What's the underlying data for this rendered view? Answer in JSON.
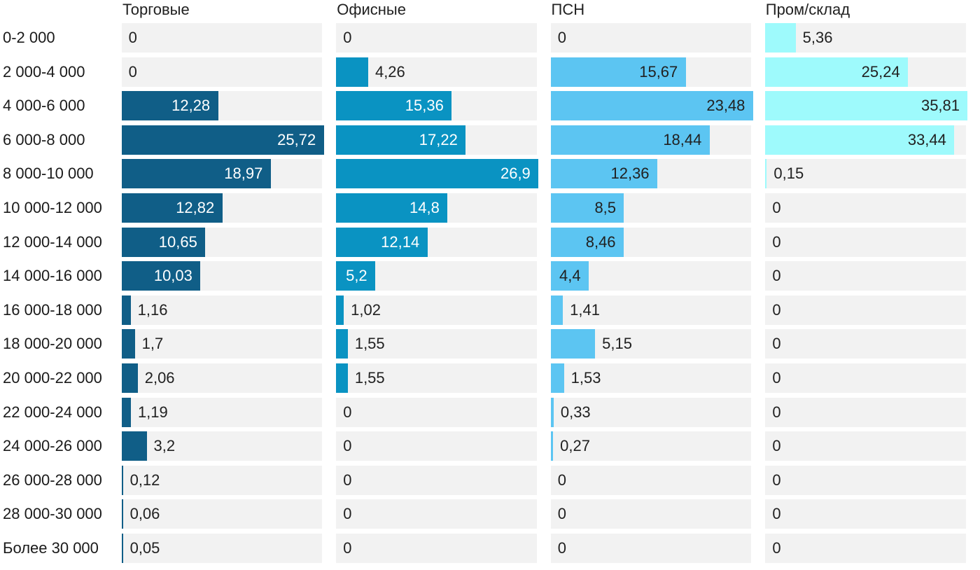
{
  "chart_data": {
    "type": "bar",
    "orientation": "horizontal",
    "title": "",
    "xlabel": "",
    "ylabel": "",
    "grid": false,
    "legend_position": "top-column-headers",
    "per_column_max_scaling": true,
    "value_format": "decimal-comma",
    "track_color": "#f2f2f2",
    "outside_label_color": "#212121",
    "categories": [
      "0-2 000",
      "2 000-4 000",
      "4 000-6 000",
      "6 000-8 000",
      "8 000-10 000",
      "10 000-12 000",
      "12 000-14 000",
      "14 000-16 000",
      "16 000-18 000",
      "18 000-20 000",
      "20 000-22 000",
      "22 000-24 000",
      "24 000-26 000",
      "26 000-28 000",
      "28 000-30 000",
      "Более 30 000"
    ],
    "series": [
      {
        "name": "Торговые",
        "color": "#105e87",
        "inside_label_color": "#ffffff",
        "values": [
          0,
          0,
          12.28,
          25.72,
          18.97,
          12.82,
          10.65,
          10.03,
          1.16,
          1.7,
          2.06,
          1.19,
          3.2,
          0.12,
          0.06,
          0.05
        ]
      },
      {
        "name": "Офисные",
        "color": "#0a93c2",
        "inside_label_color": "#ffffff",
        "values": [
          0,
          4.26,
          15.36,
          17.22,
          26.9,
          14.8,
          12.14,
          5.2,
          1.02,
          1.55,
          1.55,
          0,
          0,
          0,
          0,
          0
        ]
      },
      {
        "name": "ПСН",
        "color": "#5cc5f2",
        "inside_label_color": "#212121",
        "values": [
          0,
          15.67,
          23.48,
          18.44,
          12.36,
          8.5,
          8.46,
          4.4,
          1.41,
          5.15,
          1.53,
          0.33,
          0.27,
          0,
          0,
          0
        ]
      },
      {
        "name": "Пром/склад",
        "color": "#9efafc",
        "inside_label_color": "#212121",
        "values": [
          5.36,
          25.24,
          35.81,
          33.44,
          0.15,
          0,
          0,
          0,
          0,
          0,
          0,
          0,
          0,
          0,
          0,
          0
        ]
      }
    ]
  }
}
